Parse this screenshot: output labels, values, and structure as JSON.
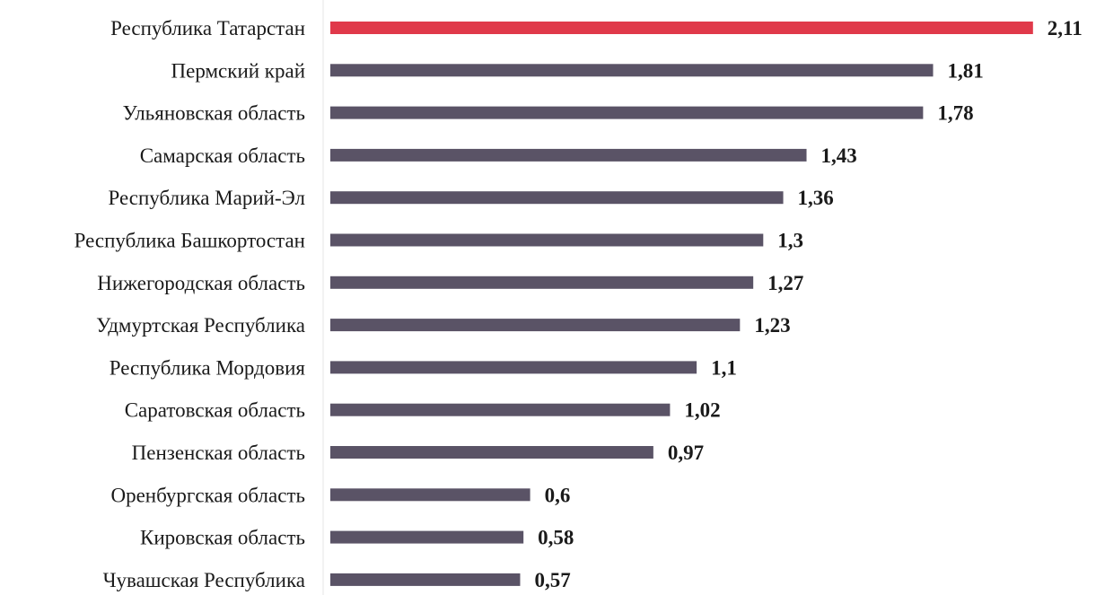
{
  "chart_data": {
    "type": "bar",
    "orientation": "horizontal",
    "categories": [
      "Республика Татарстан",
      "Пермский край",
      "Ульяновская область",
      "Самарская область",
      "Республика Марий-Эл",
      "Республика Башкортостан",
      "Нижегородская область",
      "Удмуртская Республика",
      "Республика Мордовия",
      "Саратовская область",
      "Пензенская область",
      "Оренбургская область",
      "Кировская область",
      "Чувашская Республика"
    ],
    "values": [
      2.11,
      1.81,
      1.78,
      1.43,
      1.36,
      1.3,
      1.27,
      1.23,
      1.1,
      1.02,
      0.97,
      0.6,
      0.58,
      0.57
    ],
    "value_labels": [
      "2,11",
      "1,81",
      "1,78",
      "1,43",
      "1,36",
      "1,3",
      "1,27",
      "1,23",
      "1,1",
      "1,02",
      "0,97",
      "0,6",
      "0,58",
      "0,57"
    ],
    "highlight_index": 0,
    "colors": {
      "bar": "#5a5366",
      "highlight": "#e0394a",
      "label": "#1a1a1a",
      "highlight_label": "#e0394a"
    },
    "title": "",
    "xlabel": "",
    "ylabel": "",
    "grid": false,
    "legend": "none"
  }
}
